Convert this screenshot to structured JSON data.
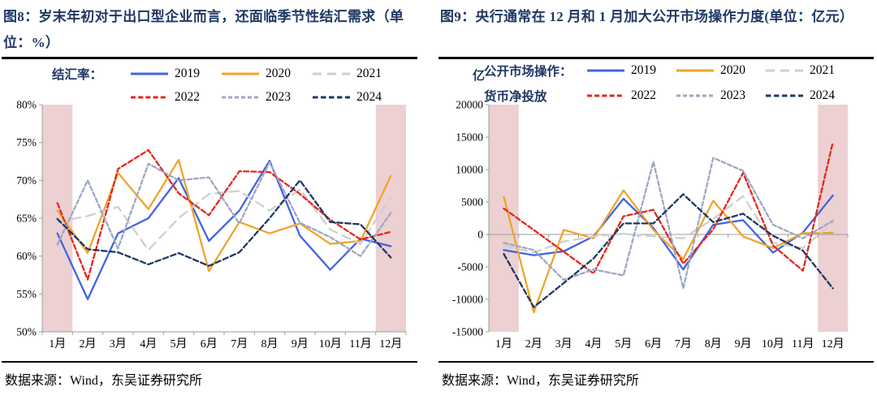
{
  "panels": [
    {
      "id": "fig8",
      "title": "图8：岁末年初对于出口型企业而言，还面临季节性结汇需求（单位：%）",
      "source": "数据来源：Wind，东吴证券研究所",
      "legend": {
        "unit": "",
        "title_lines": [
          "结汇率：",
          ""
        ],
        "items": [
          [
            "2019",
            "2020",
            "2021"
          ],
          [
            "2022",
            "2023",
            "2024"
          ]
        ]
      },
      "chart_data": {
        "type": "line",
        "title": "结汇率",
        "categories": [
          "1月",
          "2月",
          "3月",
          "4月",
          "5月",
          "6月",
          "7月",
          "8月",
          "9月",
          "10月",
          "11月",
          "12月"
        ],
        "ylim": [
          50,
          80
        ],
        "yticks": [
          80,
          75,
          70,
          65,
          60,
          55,
          50
        ],
        "ytick_suffix": "%",
        "baseline": 50,
        "grid": false,
        "legend_position": "top",
        "highlight_months": [
          "1月",
          "12月"
        ],
        "band_color": "#ecd0d2",
        "series": [
          {
            "name": "2019",
            "color": "#4164E0",
            "dash": "solid",
            "values": [
              63,
              54.3,
              63,
              65,
              70.3,
              62,
              66,
              72.6,
              62.7,
              58.2,
              62.3,
              61.3
            ]
          },
          {
            "name": "2020",
            "color": "#F0A42A",
            "dash": "solid",
            "values": [
              66,
              60.4,
              71,
              66.2,
              72.7,
              58,
              64.5,
              63,
              64.3,
              61.6,
              62,
              70.6
            ]
          },
          {
            "name": "2021",
            "color": "#CFCFCF",
            "dash": "11 7",
            "values": [
              64.5,
              65.3,
              66.5,
              60.8,
              65,
              68.2,
              68.6,
              66,
              68.8,
              63.5,
              61.6,
              67.8
            ]
          },
          {
            "name": "2022",
            "color": "#E3281C",
            "dash": "6 3.2",
            "values": [
              67,
              56.9,
              71.5,
              74,
              68.3,
              65.4,
              71.2,
              71.1,
              68.2,
              64.8,
              62.2,
              63.2
            ]
          },
          {
            "name": "2023",
            "color": "#9DA7C3",
            "dash": "5 3",
            "values": [
              61.5,
              70,
              61,
              72.2,
              70,
              70.4,
              64.3,
              72.4,
              64.4,
              62.5,
              60,
              65.7
            ]
          },
          {
            "name": "2024",
            "color": "#1F3864",
            "dash": "6.5 3.5",
            "values": [
              64.9,
              60.9,
              60.5,
              58.9,
              60.4,
              58.7,
              60.5,
              65,
              70,
              64.5,
              64.2,
              59.8
            ]
          }
        ]
      }
    },
    {
      "id": "fig9",
      "title": "图9：央行通常在 12 月和 1 月加大公开市场操作力度(单位：亿元）",
      "source": "数据来源：Wind，东吴证券研究所",
      "legend": {
        "unit": "亿",
        "title_lines": [
          "公开市场操作：",
          "货币净投放"
        ],
        "items": [
          [
            "2019",
            "2020",
            "2021"
          ],
          [
            "2022",
            "2023",
            "2024"
          ]
        ]
      },
      "chart_data": {
        "type": "line",
        "title": "公开市场操作：货币净投放",
        "categories": [
          "1月",
          "2月",
          "3月",
          "4月",
          "5月",
          "6月",
          "7月",
          "8月",
          "9月",
          "10月",
          "11月",
          "12月"
        ],
        "ylim": [
          -15000,
          20000
        ],
        "yticks": [
          20000,
          15000,
          10000,
          5000,
          0,
          -5000,
          -10000,
          -15000
        ],
        "ytick_suffix": "",
        "baseline": 0,
        "grid": false,
        "legend_position": "top",
        "highlight_months": [
          "1月",
          "12月"
        ],
        "band_color": "#ecd0d2",
        "series": [
          {
            "name": "2019",
            "color": "#4164E0",
            "dash": "solid",
            "values": [
              -2400,
              -3200,
              -2600,
              -300,
              5500,
              1000,
              -5400,
              1500,
              2200,
              -2800,
              300,
              6000
            ]
          },
          {
            "name": "2020",
            "color": "#F0A42A",
            "dash": "solid",
            "values": [
              5800,
              -12000,
              700,
              -600,
              6800,
              700,
              -3800,
              5200,
              -300,
              -2100,
              200,
              250
            ]
          },
          {
            "name": "2021",
            "color": "#CFCFCF",
            "dash": "11 7",
            "values": [
              -1700,
              -2800,
              -1100,
              -300,
              100,
              -300,
              -600,
              2400,
              5900,
              -1300,
              -2100,
              1800
            ]
          },
          {
            "name": "2022",
            "color": "#E3281C",
            "dash": "6 3.2",
            "values": [
              4000,
              700,
              -2650,
              -6000,
              2800,
              3800,
              -4500,
              800,
              9500,
              -1700,
              -5600,
              14200
            ]
          },
          {
            "name": "2023",
            "color": "#9DA7C3",
            "dash": "5 3",
            "values": [
              -1300,
              -2400,
              -7000,
              -5400,
              -6300,
              11200,
              -8300,
              11800,
              9800,
              1500,
              -600,
              2100
            ]
          },
          {
            "name": "2024",
            "color": "#1F3864",
            "dash": "6.5 3.5",
            "values": [
              -3000,
              -11200,
              -7500,
              -3700,
              1700,
              1700,
              6200,
              1900,
              3200,
              -200,
              -2500,
              -8300
            ]
          }
        ]
      }
    }
  ]
}
